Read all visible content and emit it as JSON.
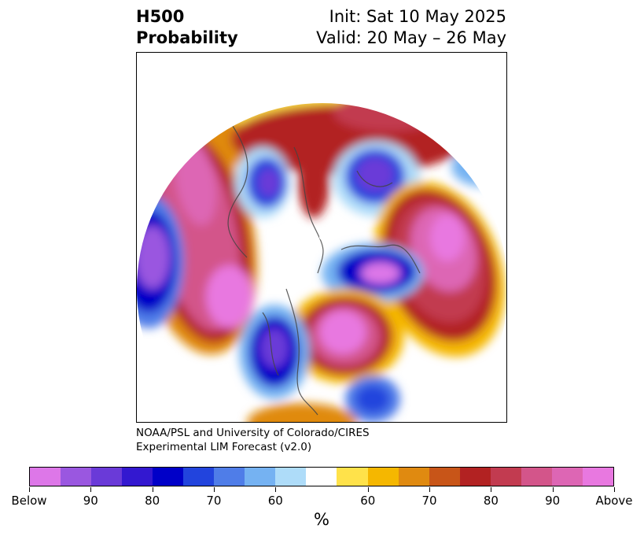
{
  "title": {
    "line1": "H500",
    "line2": "Probability"
  },
  "header_right": {
    "init": "Init: Sat 10 May 2025",
    "valid": "Valid: 20 May – 26 May"
  },
  "credit": {
    "line1": "NOAA/PSL and University of Colorado/CIRES",
    "line2": "Experimental LIM Forecast (v2.0)"
  },
  "colorbar": {
    "colors": [
      "#dd77e8",
      "#9a57e0",
      "#6a3ad8",
      "#3318d0",
      "#0000c8",
      "#2244dd",
      "#4f7de8",
      "#75b2f2",
      "#aedcf9",
      "#ffffff",
      "#ffe24a",
      "#f5b700",
      "#e08a10",
      "#c85518",
      "#b22222",
      "#c23b50",
      "#d3558a",
      "#dd66b4",
      "#e878e0"
    ],
    "tick_labels": [
      "Below",
      "90",
      "80",
      "70",
      "60",
      "60",
      "70",
      "80",
      "90",
      "Above"
    ],
    "unit": "%"
  }
}
